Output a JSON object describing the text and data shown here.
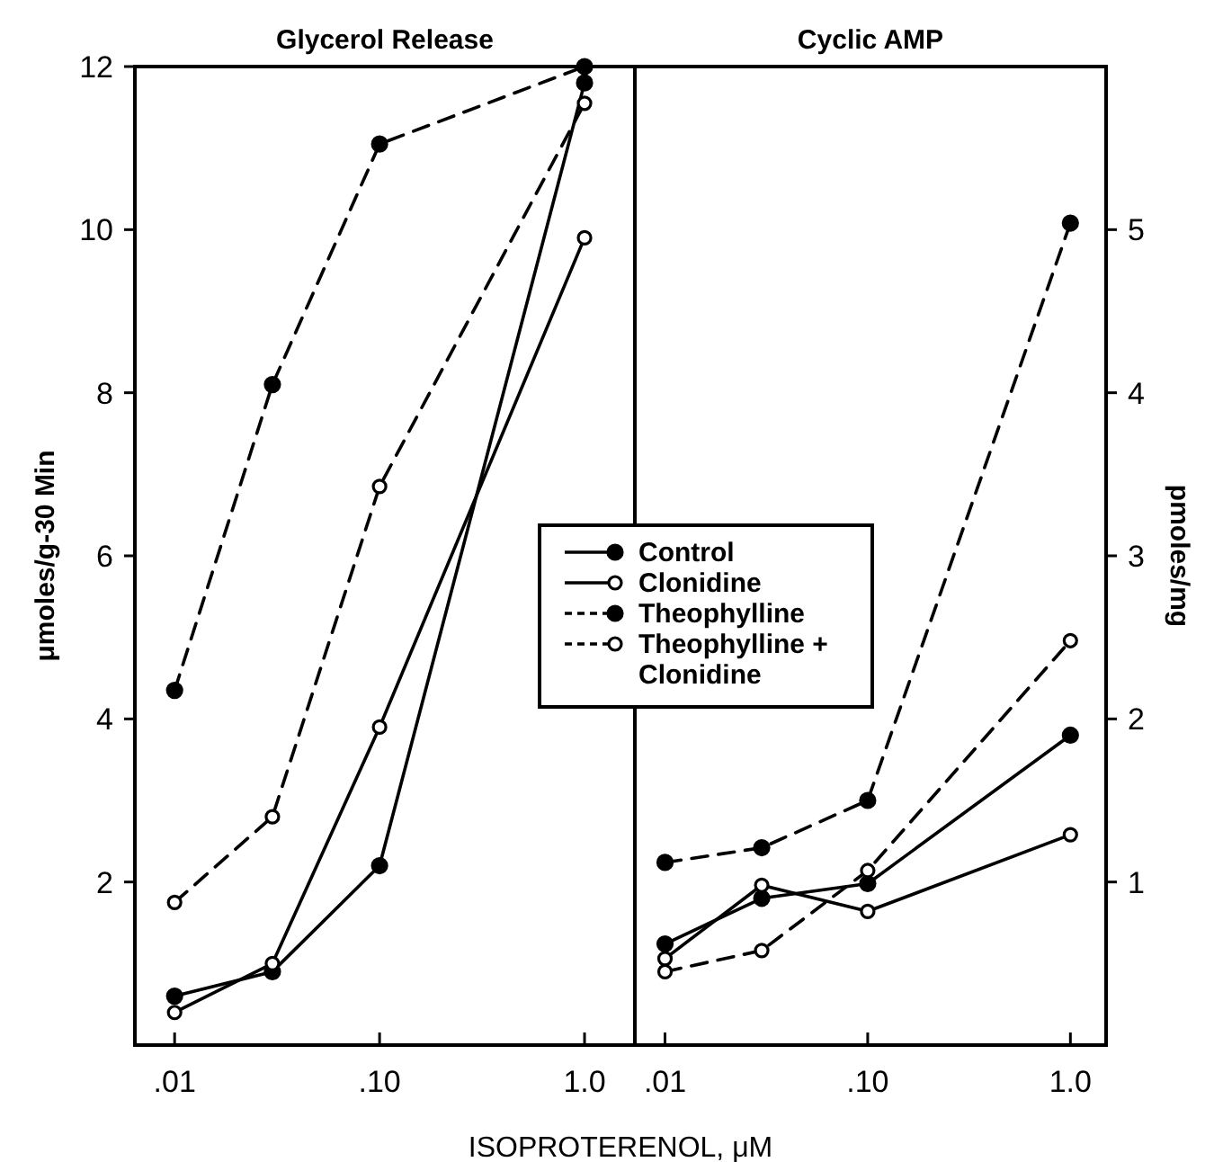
{
  "chart_data": [
    {
      "type": "line",
      "title": "Glycerol Release",
      "xlabel": "ISOPROTERENOL, μM",
      "ylabel": "μmoles/g-30 Min",
      "log": "x",
      "xlim": [
        0.0064,
        1.76
      ],
      "xticks": [
        {
          "value": 0.01,
          "label": ".01"
        },
        {
          "value": 0.1,
          "label": ".10"
        },
        {
          "value": 1,
          "label": "1.0"
        }
      ],
      "ylim": [
        0,
        12
      ],
      "yticks": [
        2,
        4,
        6,
        8,
        10,
        12
      ],
      "x": [
        0.01,
        0.03,
        0.1,
        1
      ],
      "legend": "right",
      "series": [
        {
          "name": "Control",
          "color": "#000000",
          "line_style": "solid",
          "marker": "circle",
          "values": [
            0.6,
            0.9,
            2.2,
            11.8
          ]
        },
        {
          "name": "Clonidine",
          "color": "#000000",
          "line_style": "solid",
          "marker": "open circle",
          "values": [
            0.4,
            1.0,
            3.9,
            9.9
          ]
        },
        {
          "name": "Theophylline",
          "color": "#000000",
          "line_style": "dashed",
          "marker": "circle",
          "values": [
            4.35,
            8.1,
            11.05,
            12.0
          ]
        },
        {
          "name": "Theophylline + Clonidine",
          "color": "#000000",
          "line_style": "dashed",
          "marker": "open circle",
          "values": [
            1.75,
            2.8,
            6.85,
            11.55
          ]
        }
      ]
    },
    {
      "type": "line",
      "title": "Cyclic AMP",
      "y2label": "pmoles/mg",
      "log": "x",
      "xlim": [
        0.0071,
        1.5
      ],
      "xticks": [
        {
          "value": 0.01,
          "label": ".01"
        },
        {
          "value": 0.1,
          "label": ".10"
        },
        {
          "value": 1,
          "label": "1.0"
        }
      ],
      "y2lim": [
        0,
        6
      ],
      "y2ticks": [
        1,
        2,
        3,
        4,
        5
      ],
      "x": [
        0.01,
        0.03,
        0.1,
        1
      ],
      "series": [
        {
          "color": "#000000",
          "line_style": "solid",
          "marker": "circle",
          "axis": "y2",
          "values": [
            0.62,
            0.9,
            0.99,
            1.9
          ]
        },
        {
          "color": "#000000",
          "line_style": "solid",
          "marker": "open circle",
          "axis": "y2",
          "values": [
            0.53,
            0.98,
            0.82,
            1.29
          ]
        },
        {
          "color": "#000000",
          "line_style": "dashed",
          "marker": "circle",
          "axis": "y2",
          "values": [
            1.12,
            1.21,
            1.5,
            5.04
          ]
        },
        {
          "color": "#000000",
          "line_style": "dashed",
          "marker": "open circle",
          "axis": "y2",
          "values": [
            0.45,
            0.58,
            1.07,
            2.48
          ]
        }
      ]
    }
  ]
}
